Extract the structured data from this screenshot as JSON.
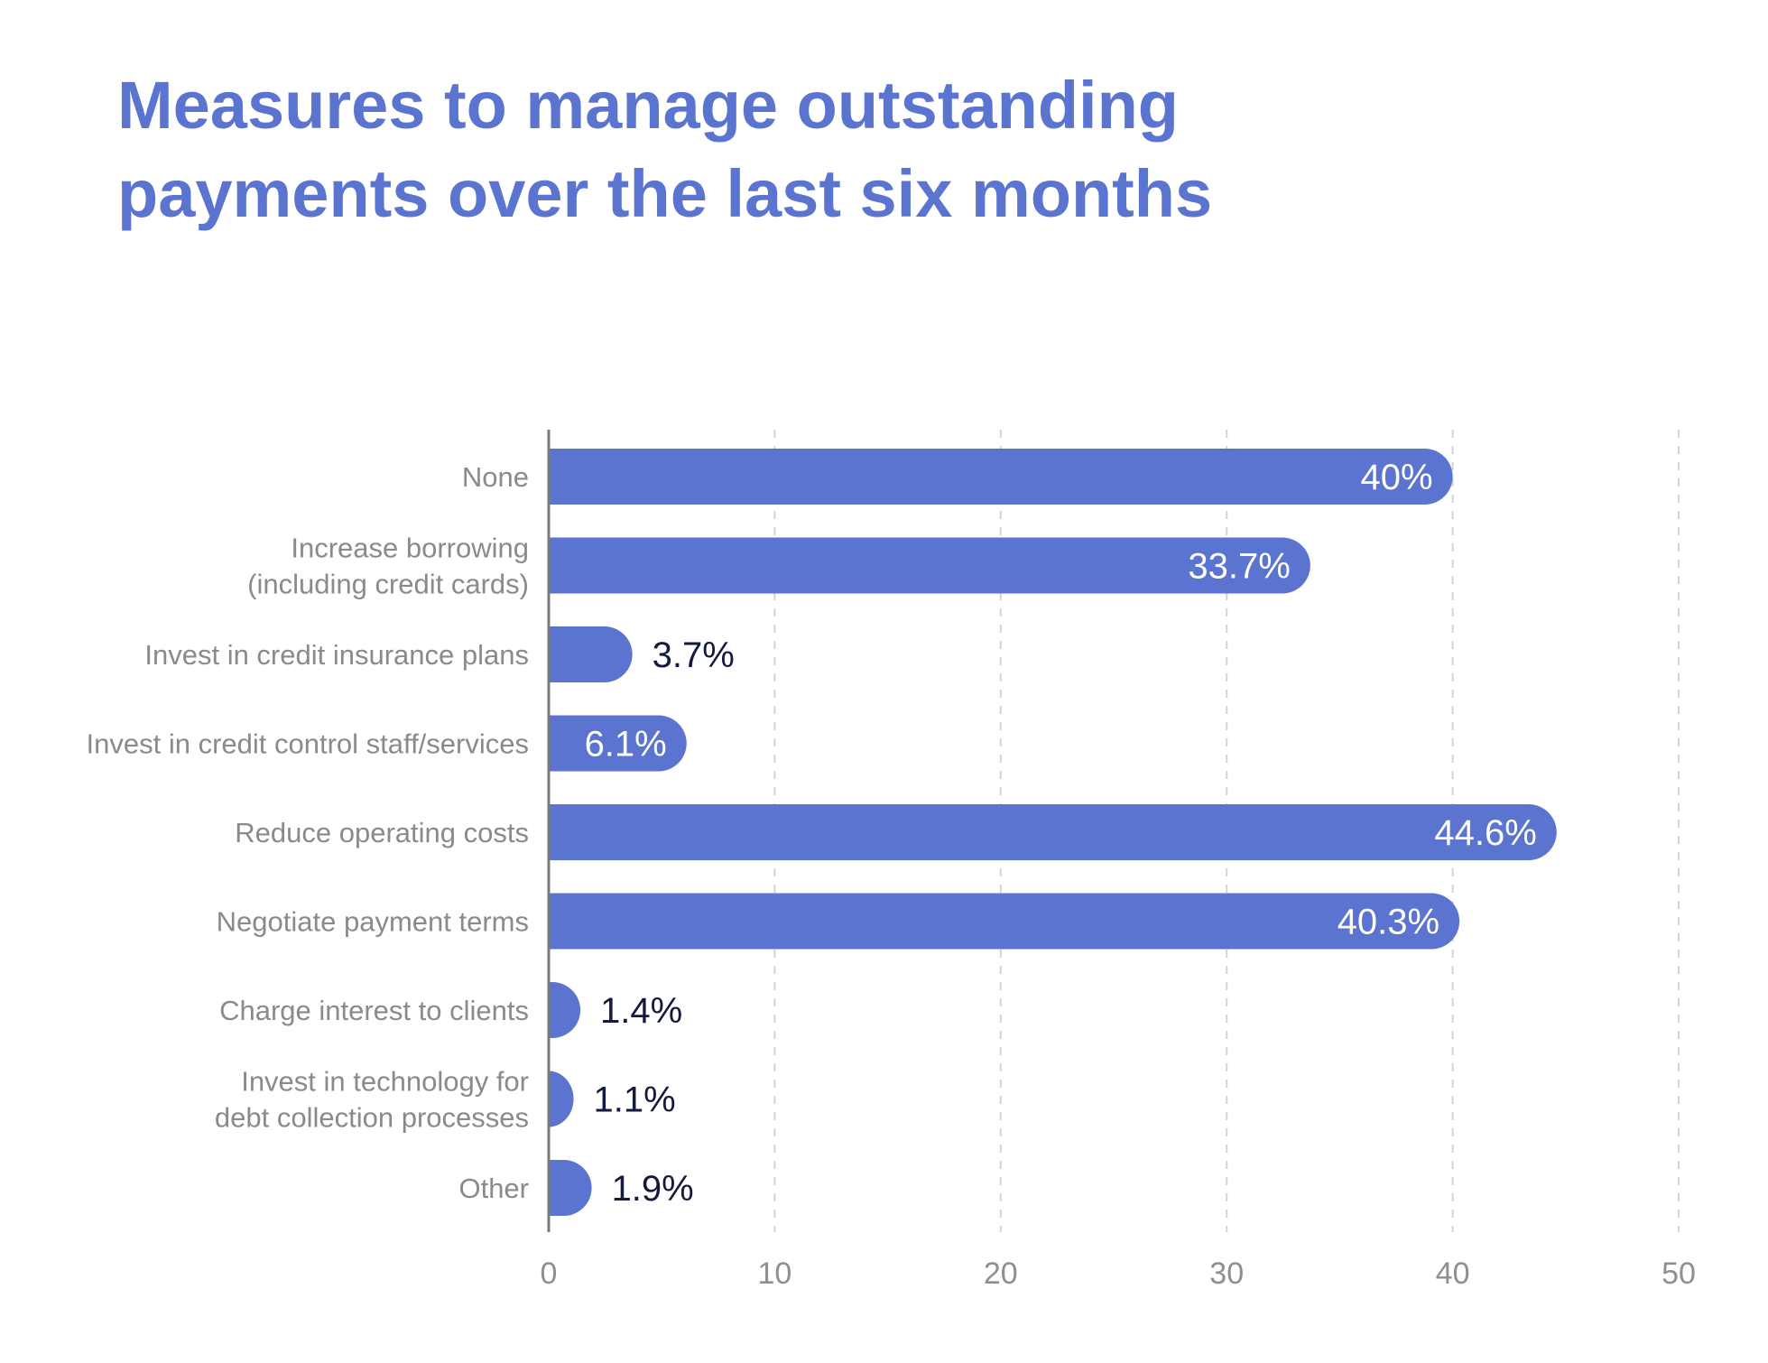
{
  "chart_data": {
    "type": "bar",
    "orientation": "horizontal",
    "title": [
      "Measures to manage outstanding",
      "payments over the last six months"
    ],
    "categories": [
      [
        "None"
      ],
      [
        "Increase borrowing",
        "(including credit cards)"
      ],
      [
        "Invest in credit insurance plans"
      ],
      [
        "Invest in credit control staff/services"
      ],
      [
        "Reduce operating costs"
      ],
      [
        "Negotiate payment terms"
      ],
      [
        "Charge interest to clients"
      ],
      [
        "Invest in technology for",
        "debt collection processes"
      ],
      [
        "Other"
      ]
    ],
    "values": [
      40,
      33.7,
      3.7,
      6.1,
      44.6,
      40.3,
      1.4,
      1.1,
      1.9
    ],
    "value_labels": [
      "40%",
      "33.7%",
      "3.7%",
      "6.1%",
      "44.6%",
      "40.3%",
      "1.4%",
      "1.1%",
      "1.9%"
    ],
    "value_label_position": [
      "inside",
      "inside",
      "outside",
      "inside",
      "inside",
      "inside",
      "outside",
      "outside",
      "outside"
    ],
    "x_ticks": [
      "0",
      "10",
      "20",
      "30",
      "40",
      "50"
    ],
    "xlim": [
      0,
      50
    ],
    "grid": "vertical dashed",
    "colors": {
      "bar": "#5b74d0",
      "title": "#5b74d0",
      "label_inside": "#ffffff",
      "label_outside": "#141a3c",
      "category_text": "#8a8a8a",
      "grid": "#d4d4d4",
      "axis": "#7a7a7a"
    }
  }
}
